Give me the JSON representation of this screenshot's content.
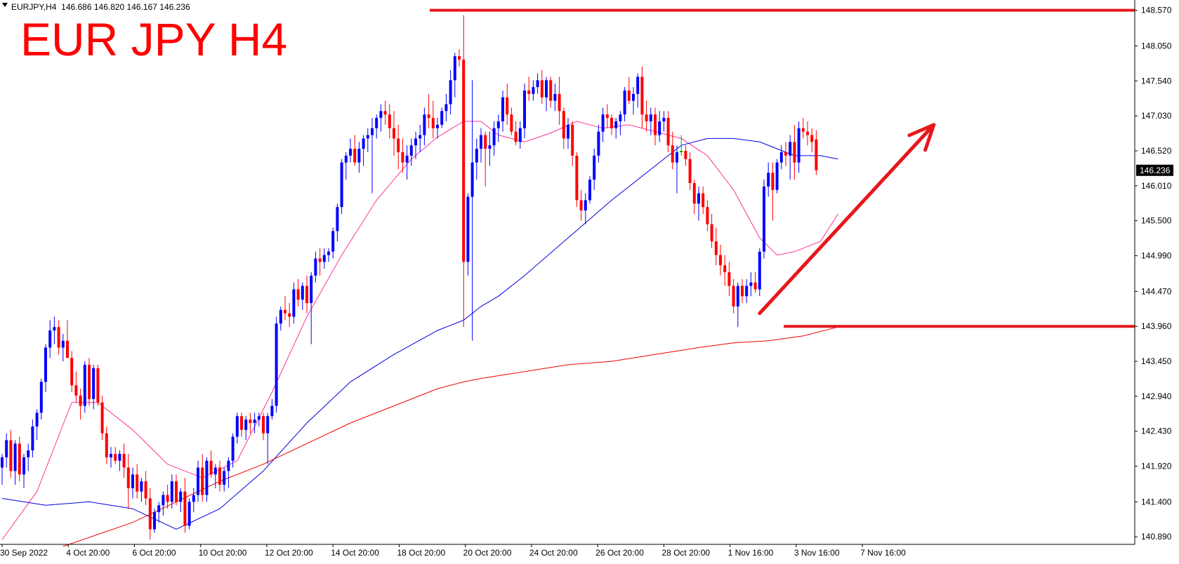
{
  "header": {
    "dropdown_icon": "triangle-down-icon",
    "symbol_info": "EURJPY,H4  146.686 146.820 146.167 146.236"
  },
  "overlay_title": "EUR JPY H4",
  "colors": {
    "bull": "#0000ff",
    "bear": "#ff0000",
    "doji": "#00aa00",
    "ma_fast": "#ff3399",
    "ma_mid": "#0000dd",
    "ma_slow": "#ee0000",
    "annotation": "#e8161b",
    "axis": "#000000",
    "price_badge_bg": "#000000",
    "price_badge_fg": "#ffffff"
  },
  "chart_data": {
    "type": "candlestick",
    "symbol": "EURJPY",
    "timeframe": "H4",
    "ohlc_header": {
      "open": 146.686,
      "high": 146.82,
      "low": 146.167,
      "close": 146.236
    },
    "y_ticks": [
      "148.570",
      "148.050",
      "147.540",
      "147.030",
      "146.520",
      "146.010",
      "145.500",
      "144.990",
      "144.470",
      "143.960",
      "143.450",
      "142.940",
      "142.430",
      "141.920",
      "141.400",
      "140.890"
    ],
    "ylim": [
      140.78,
      148.72
    ],
    "x_ticks": [
      "30 Sep 2022",
      "4 Oct 20:00",
      "6 Oct 20:00",
      "10 Oct 20:00",
      "12 Oct 20:00",
      "14 Oct 20:00",
      "18 Oct 20:00",
      "20 Oct 20:00",
      "24 Oct 20:00",
      "26 Oct 20:00",
      "28 Oct 20:00",
      "1 Nov 16:00",
      "3 Nov 16:00",
      "7 Nov 16:00"
    ],
    "current_price": "146.236",
    "candles": [
      [
        141.9,
        142.1,
        141.65,
        142.05
      ],
      [
        142.05,
        142.4,
        141.9,
        142.3
      ],
      [
        142.3,
        142.45,
        141.75,
        141.85
      ],
      [
        141.85,
        142.3,
        141.65,
        142.25
      ],
      [
        142.25,
        142.35,
        141.7,
        141.8
      ],
      [
        141.8,
        142.1,
        141.6,
        142.05
      ],
      [
        142.05,
        142.25,
        141.85,
        142.15
      ],
      [
        142.15,
        142.6,
        142.05,
        142.5
      ],
      [
        142.5,
        142.75,
        142.3,
        142.7
      ],
      [
        142.7,
        143.2,
        142.6,
        143.15
      ],
      [
        143.15,
        143.7,
        143.0,
        143.65
      ],
      [
        143.65,
        144.05,
        143.5,
        143.9
      ],
      [
        143.9,
        144.1,
        143.7,
        143.95
      ],
      [
        143.95,
        144.05,
        143.55,
        143.65
      ],
      [
        143.65,
        143.85,
        143.45,
        143.75
      ],
      [
        143.75,
        144.05,
        143.5,
        143.5
      ],
      [
        143.5,
        143.6,
        143.0,
        143.1
      ],
      [
        143.1,
        143.3,
        142.85,
        142.95
      ],
      [
        142.95,
        143.05,
        142.6,
        142.8
      ],
      [
        142.8,
        143.45,
        142.7,
        143.4
      ],
      [
        143.4,
        143.5,
        142.8,
        142.9
      ],
      [
        142.9,
        143.4,
        142.75,
        143.35
      ],
      [
        143.35,
        143.4,
        142.8,
        142.85
      ],
      [
        142.85,
        142.95,
        142.3,
        142.4
      ],
      [
        142.4,
        142.5,
        141.95,
        142.05
      ],
      [
        142.05,
        142.2,
        141.9,
        142.1
      ],
      [
        142.1,
        142.2,
        141.95,
        142.0
      ],
      [
        142.0,
        142.15,
        141.85,
        142.1
      ],
      [
        142.1,
        142.25,
        141.75,
        141.9
      ],
      [
        141.9,
        142.1,
        141.3,
        141.6
      ],
      [
        141.6,
        141.9,
        141.45,
        141.8
      ],
      [
        141.8,
        141.95,
        141.45,
        141.55
      ],
      [
        141.55,
        141.75,
        141.4,
        141.7
      ],
      [
        141.7,
        141.85,
        141.35,
        141.45
      ],
      [
        141.45,
        141.6,
        140.85,
        141.0
      ],
      [
        141.0,
        141.3,
        140.95,
        141.25
      ],
      [
        141.25,
        141.4,
        141.1,
        141.35
      ],
      [
        141.35,
        141.55,
        141.2,
        141.5
      ],
      [
        141.5,
        141.65,
        141.3,
        141.4
      ],
      [
        141.4,
        141.8,
        141.3,
        141.7
      ],
      [
        141.7,
        141.8,
        141.35,
        141.4
      ],
      [
        141.4,
        141.6,
        141.25,
        141.55
      ],
      [
        141.55,
        141.75,
        140.95,
        141.05
      ],
      [
        141.05,
        141.45,
        141.0,
        141.4
      ],
      [
        141.4,
        141.6,
        141.25,
        141.5
      ],
      [
        141.5,
        142.0,
        141.4,
        141.9
      ],
      [
        141.9,
        142.1,
        141.4,
        141.5
      ],
      [
        141.5,
        142.05,
        141.4,
        142.0
      ],
      [
        142.0,
        142.15,
        141.75,
        141.8
      ],
      [
        141.8,
        141.95,
        141.6,
        141.9
      ],
      [
        141.9,
        142.0,
        141.55,
        141.65
      ],
      [
        141.65,
        141.9,
        141.55,
        141.85
      ],
      [
        141.85,
        142.05,
        141.6,
        142.0
      ],
      [
        142.0,
        142.4,
        141.9,
        142.35
      ],
      [
        142.35,
        142.7,
        142.25,
        142.65
      ],
      [
        142.65,
        142.7,
        142.35,
        142.45
      ],
      [
        142.45,
        142.65,
        142.3,
        142.6
      ],
      [
        142.6,
        142.7,
        142.4,
        142.55
      ],
      [
        142.55,
        142.7,
        142.4,
        142.6
      ],
      [
        142.6,
        142.7,
        142.5,
        142.65
      ],
      [
        142.65,
        142.7,
        142.3,
        142.4
      ],
      [
        142.4,
        142.7,
        141.95,
        142.65
      ],
      [
        142.65,
        142.9,
        142.6,
        142.8
      ],
      [
        142.8,
        144.1,
        142.7,
        144.0
      ],
      [
        144.0,
        144.25,
        143.9,
        144.2
      ],
      [
        144.2,
        144.4,
        144.05,
        144.15
      ],
      [
        144.15,
        144.3,
        143.95,
        144.1
      ],
      [
        144.1,
        144.6,
        144.0,
        144.5
      ],
      [
        144.5,
        144.65,
        144.25,
        144.35
      ],
      [
        144.35,
        144.6,
        144.2,
        144.55
      ],
      [
        144.55,
        144.7,
        144.15,
        144.3
      ],
      [
        144.3,
        144.75,
        143.7,
        144.7
      ],
      [
        144.7,
        145.05,
        144.6,
        144.95
      ],
      [
        144.95,
        145.1,
        144.7,
        144.9
      ],
      [
        144.9,
        145.1,
        144.8,
        145.0
      ],
      [
        145.0,
        145.1,
        144.9,
        145.05
      ],
      [
        145.05,
        145.4,
        144.95,
        145.35
      ],
      [
        145.35,
        145.75,
        145.2,
        145.7
      ],
      [
        145.7,
        146.4,
        145.6,
        146.35
      ],
      [
        146.35,
        146.5,
        146.1,
        146.45
      ],
      [
        146.45,
        146.7,
        146.35,
        146.55
      ],
      [
        146.55,
        146.75,
        146.3,
        146.35
      ],
      [
        146.35,
        146.65,
        146.2,
        146.55
      ],
      [
        146.55,
        146.75,
        146.3,
        146.7
      ],
      [
        146.7,
        146.85,
        146.5,
        146.75
      ],
      [
        146.75,
        147.0,
        145.9,
        146.85
      ],
      [
        146.85,
        147.05,
        146.7,
        147.0
      ],
      [
        147.0,
        147.2,
        146.8,
        147.1
      ],
      [
        147.1,
        147.25,
        146.9,
        147.05
      ],
      [
        147.05,
        147.2,
        146.7,
        146.85
      ],
      [
        146.85,
        147.1,
        146.45,
        146.7
      ],
      [
        146.7,
        146.9,
        146.25,
        146.5
      ],
      [
        146.5,
        146.7,
        146.2,
        146.35
      ],
      [
        146.35,
        146.6,
        146.1,
        146.45
      ],
      [
        146.45,
        146.7,
        146.3,
        146.6
      ],
      [
        146.6,
        146.8,
        146.4,
        146.7
      ],
      [
        146.7,
        146.9,
        146.5,
        146.75
      ],
      [
        146.75,
        147.15,
        146.6,
        147.05
      ],
      [
        147.05,
        147.35,
        146.85,
        147.0
      ],
      [
        147.0,
        147.25,
        146.7,
        146.85
      ],
      [
        146.85,
        147.0,
        146.7,
        146.9
      ],
      [
        146.9,
        147.15,
        146.85,
        147.1
      ],
      [
        147.1,
        147.35,
        146.95,
        147.2
      ],
      [
        147.2,
        147.7,
        147.05,
        147.55
      ],
      [
        147.55,
        147.95,
        147.3,
        147.9
      ],
      [
        147.9,
        148.0,
        147.75,
        147.85
      ],
      [
        147.85,
        148.5,
        143.95,
        144.9
      ],
      [
        144.9,
        145.9,
        144.7,
        145.85
      ],
      [
        145.85,
        147.55,
        143.75,
        146.35
      ],
      [
        146.35,
        146.7,
        146.1,
        146.55
      ],
      [
        146.55,
        146.85,
        146.35,
        146.75
      ],
      [
        146.75,
        146.8,
        146.0,
        146.55
      ],
      [
        146.55,
        146.8,
        146.3,
        146.6
      ],
      [
        146.6,
        146.95,
        146.45,
        146.85
      ],
      [
        146.85,
        147.05,
        146.65,
        146.95
      ],
      [
        146.95,
        147.4,
        146.8,
        147.3
      ],
      [
        147.3,
        147.5,
        146.9,
        147.05
      ],
      [
        147.05,
        147.15,
        146.75,
        146.8
      ],
      [
        146.8,
        146.95,
        146.6,
        146.65
      ],
      [
        146.65,
        146.95,
        146.55,
        146.85
      ],
      [
        146.85,
        147.5,
        146.7,
        147.4
      ],
      [
        147.4,
        147.6,
        147.25,
        147.35
      ],
      [
        147.35,
        147.55,
        147.25,
        147.45
      ],
      [
        147.45,
        147.65,
        147.35,
        147.55
      ],
      [
        147.55,
        147.7,
        147.2,
        147.3
      ],
      [
        147.3,
        147.6,
        147.1,
        147.55
      ],
      [
        147.55,
        147.6,
        147.15,
        147.25
      ],
      [
        147.25,
        147.5,
        147.1,
        147.35
      ],
      [
        147.35,
        147.6,
        146.9,
        147.1
      ],
      [
        147.1,
        147.15,
        146.55,
        146.7
      ],
      [
        146.7,
        147.0,
        146.55,
        146.9
      ],
      [
        146.9,
        146.95,
        146.3,
        146.45
      ],
      [
        146.45,
        146.5,
        145.7,
        145.8
      ],
      [
        145.8,
        145.95,
        145.5,
        145.65
      ],
      [
        145.65,
        145.9,
        145.45,
        145.8
      ],
      [
        145.8,
        146.15,
        145.75,
        146.1
      ],
      [
        146.1,
        146.55,
        145.95,
        146.45
      ],
      [
        146.45,
        146.9,
        146.35,
        146.8
      ],
      [
        146.8,
        147.15,
        146.65,
        147.05
      ],
      [
        147.05,
        147.2,
        146.85,
        147.0
      ],
      [
        147.0,
        147.05,
        146.75,
        146.85
      ],
      [
        146.85,
        147.0,
        146.7,
        146.95
      ],
      [
        146.95,
        147.1,
        146.75,
        147.05
      ],
      [
        147.05,
        147.45,
        146.95,
        147.4
      ],
      [
        147.4,
        147.6,
        147.2,
        147.25
      ],
      [
        147.25,
        147.45,
        147.05,
        147.35
      ],
      [
        147.35,
        147.65,
        147.15,
        147.6
      ],
      [
        147.6,
        147.75,
        146.85,
        147.05
      ],
      [
        147.05,
        147.25,
        146.8,
        146.95
      ],
      [
        146.95,
        147.15,
        146.75,
        147.05
      ],
      [
        147.05,
        147.15,
        146.6,
        146.75
      ],
      [
        146.75,
        147.1,
        146.65,
        146.95
      ],
      [
        146.95,
        147.1,
        146.8,
        147.0
      ],
      [
        147.0,
        147.1,
        146.5,
        146.6
      ],
      [
        146.6,
        146.8,
        146.25,
        146.35
      ],
      [
        146.35,
        146.6,
        145.9,
        146.5
      ],
      [
        146.5,
        146.75,
        146.45,
        146.52
      ],
      [
        146.52,
        146.6,
        146.3,
        146.4
      ],
      [
        146.4,
        146.5,
        145.95,
        146.05
      ],
      [
        146.05,
        146.1,
        145.6,
        145.75
      ],
      [
        145.75,
        146.0,
        145.5,
        145.9
      ],
      [
        145.9,
        146.0,
        145.6,
        145.7
      ],
      [
        145.7,
        145.8,
        145.35,
        145.45
      ],
      [
        145.45,
        145.6,
        145.1,
        145.2
      ],
      [
        145.2,
        145.4,
        144.85,
        145.0
      ],
      [
        145.0,
        145.15,
        144.7,
        144.85
      ],
      [
        144.85,
        145.0,
        144.55,
        144.75
      ],
      [
        144.75,
        144.9,
        144.4,
        144.55
      ],
      [
        144.55,
        144.65,
        144.15,
        144.25
      ],
      [
        144.25,
        144.6,
        143.95,
        144.55
      ],
      [
        144.55,
        144.65,
        144.3,
        144.4
      ],
      [
        144.4,
        144.65,
        144.3,
        144.55
      ],
      [
        144.55,
        144.75,
        144.4,
        144.6
      ],
      [
        144.6,
        144.75,
        144.45,
        144.5
      ],
      [
        144.5,
        145.1,
        144.4,
        145.05
      ],
      [
        145.05,
        146.1,
        144.95,
        146.0
      ],
      [
        146.0,
        146.35,
        145.85,
        146.2
      ],
      [
        146.2,
        146.35,
        145.5,
        145.95
      ],
      [
        145.95,
        146.4,
        145.9,
        146.35
      ],
      [
        146.35,
        146.6,
        146.25,
        146.5
      ],
      [
        146.5,
        146.65,
        146.3,
        146.45
      ],
      [
        146.45,
        146.75,
        146.1,
        146.65
      ],
      [
        146.65,
        146.9,
        146.1,
        146.35
      ],
      [
        146.35,
        146.95,
        146.2,
        146.85
      ],
      [
        146.85,
        147.0,
        146.7,
        146.8
      ],
      [
        146.8,
        146.95,
        146.6,
        146.75
      ],
      [
        146.75,
        146.85,
        146.5,
        146.65
      ],
      [
        146.686,
        146.82,
        146.167,
        146.236
      ]
    ],
    "moving_averages": [
      {
        "period_hint": "fast",
        "color": "#ff3399",
        "x_index": [
          0,
          8,
          16,
          22,
          30,
          38,
          46,
          54,
          62,
          70,
          78,
          86,
          94,
          100,
          106,
          110,
          114,
          120,
          126,
          132,
          138,
          144,
          150,
          156,
          162,
          168,
          174,
          178,
          182,
          188,
          192
        ],
        "values": [
          140.85,
          141.55,
          142.85,
          142.85,
          142.45,
          141.95,
          141.75,
          142.0,
          143.0,
          144.1,
          145.0,
          145.8,
          146.4,
          146.72,
          146.95,
          146.95,
          146.75,
          146.65,
          146.78,
          146.95,
          146.85,
          146.9,
          146.8,
          146.7,
          146.45,
          145.95,
          145.25,
          145.0,
          145.05,
          145.2,
          145.6
        ]
      },
      {
        "period_hint": "mid",
        "color": "#0000dd",
        "x_index": [
          0,
          10,
          20,
          30,
          40,
          50,
          60,
          70,
          80,
          90,
          100,
          106,
          110,
          114,
          120,
          130,
          140,
          150,
          156,
          162,
          168,
          174,
          178,
          182,
          188,
          192
        ],
        "values": [
          141.45,
          141.35,
          141.4,
          141.3,
          141.0,
          141.3,
          141.85,
          142.55,
          143.15,
          143.55,
          143.9,
          144.05,
          144.25,
          144.4,
          144.7,
          145.25,
          145.8,
          146.3,
          146.6,
          146.7,
          146.7,
          146.65,
          146.55,
          146.45,
          146.45,
          146.4
        ]
      },
      {
        "period_hint": "slow",
        "color": "#ee0000",
        "x_index": [
          14,
          30,
          40,
          50,
          60,
          70,
          80,
          90,
          100,
          106,
          110,
          120,
          130,
          140,
          150,
          160,
          168,
          176,
          184,
          192
        ],
        "values": [
          140.75,
          141.1,
          141.4,
          141.7,
          141.95,
          142.25,
          142.55,
          142.8,
          143.05,
          143.15,
          143.2,
          143.3,
          143.4,
          143.45,
          143.55,
          143.65,
          143.72,
          143.75,
          143.82,
          143.95
        ]
      }
    ],
    "annotations": {
      "resistance_level": 148.57,
      "support_level": 143.96,
      "trend_arrow": {
        "from": [
          174,
          144.15
        ],
        "to": [
          214,
          146.9
        ],
        "direction": "up"
      }
    }
  }
}
